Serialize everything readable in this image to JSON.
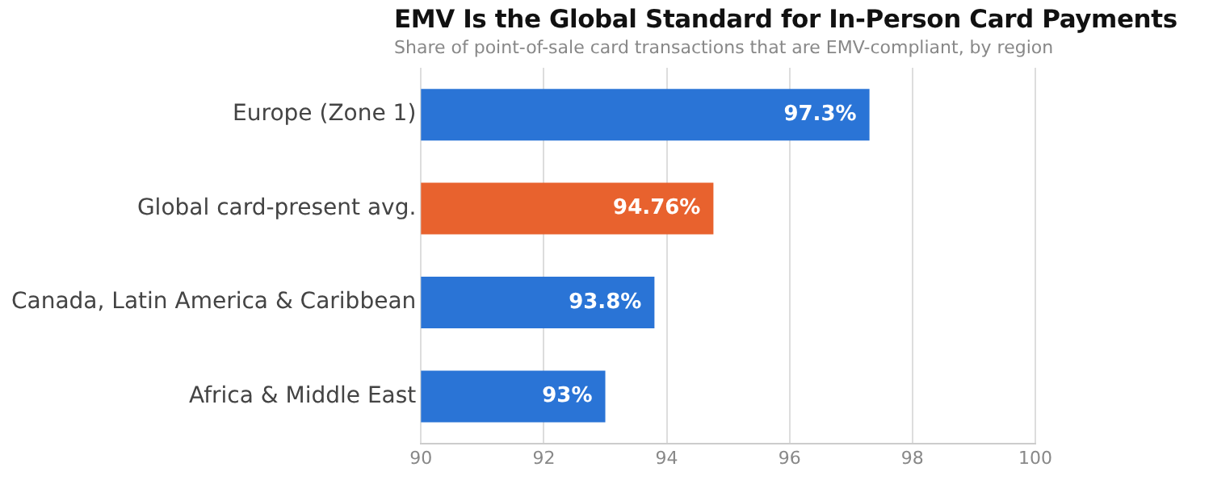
{
  "chart_data": {
    "type": "bar",
    "orientation": "horizontal",
    "title": "EMV Is the Global Standard for In-Person Card Payments",
    "subtitle": "Share of point-of-sale card transactions that are EMV-compliant, by region",
    "categories": [
      "Europe (Zone 1)",
      "Global card-present avg.",
      "Canada, Latin America & Caribbean",
      "Africa & Middle East"
    ],
    "values": [
      97.3,
      94.76,
      93.8,
      93
    ],
    "colors": [
      "#2a74d6",
      "#e8622e",
      "#2a74d6",
      "#2a74d6"
    ],
    "value_labels": [
      "97.3%",
      "94.76%",
      "93.8%",
      "93%"
    ],
    "xlim": [
      90,
      100
    ],
    "xticks": [
      90,
      92,
      94,
      96,
      98,
      100
    ],
    "grid": "x",
    "legend": false
  }
}
